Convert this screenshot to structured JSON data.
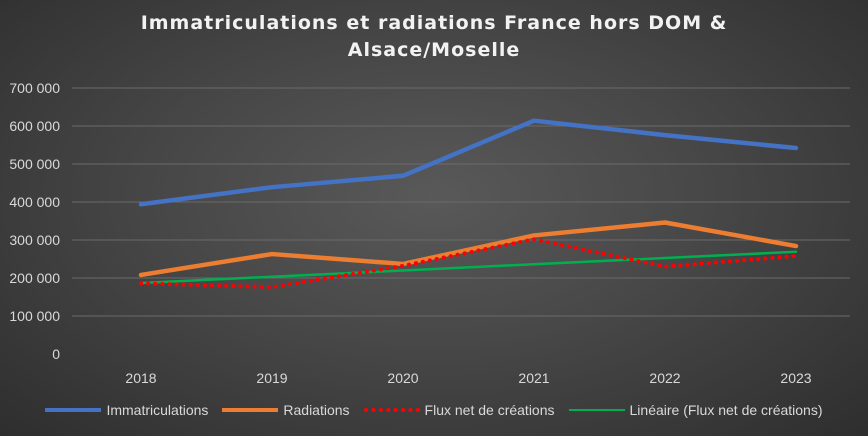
{
  "chart_data": {
    "type": "line",
    "title_lines": [
      "Immatriculations et radiations France hors DOM &",
      "Alsace/Moselle"
    ],
    "categories": [
      "2018",
      "2019",
      "2020",
      "2021",
      "2022",
      "2023"
    ],
    "ylim": [
      0,
      700000
    ],
    "yticks": [
      0,
      100000,
      200000,
      300000,
      400000,
      500000,
      600000,
      700000
    ],
    "ytick_labels": [
      "0",
      "100 000",
      "200 000",
      "300 000",
      "400 000",
      "500 000",
      "600 000",
      "700 000"
    ],
    "grid": true,
    "legend_position": "bottom",
    "series": [
      {
        "name": "Immatriculations",
        "color": "#4472c4",
        "style": "solid",
        "values": [
          394000,
          439000,
          469000,
          614000,
          576000,
          542000
        ]
      },
      {
        "name": "Radiations",
        "color": "#ed7d31",
        "style": "solid",
        "values": [
          208000,
          263000,
          237000,
          312000,
          346000,
          284000
        ]
      },
      {
        "name": "Flux net de créations",
        "color": "#ff0000",
        "style": "dotted",
        "values": [
          186000,
          176000,
          232000,
          302000,
          230000,
          258000
        ]
      },
      {
        "name": "Linéaire (Flux net de créations)",
        "color": "#00b050",
        "style": "trend",
        "values": [
          187000,
          203400,
          219800,
          236200,
          252600,
          269000
        ]
      }
    ]
  }
}
